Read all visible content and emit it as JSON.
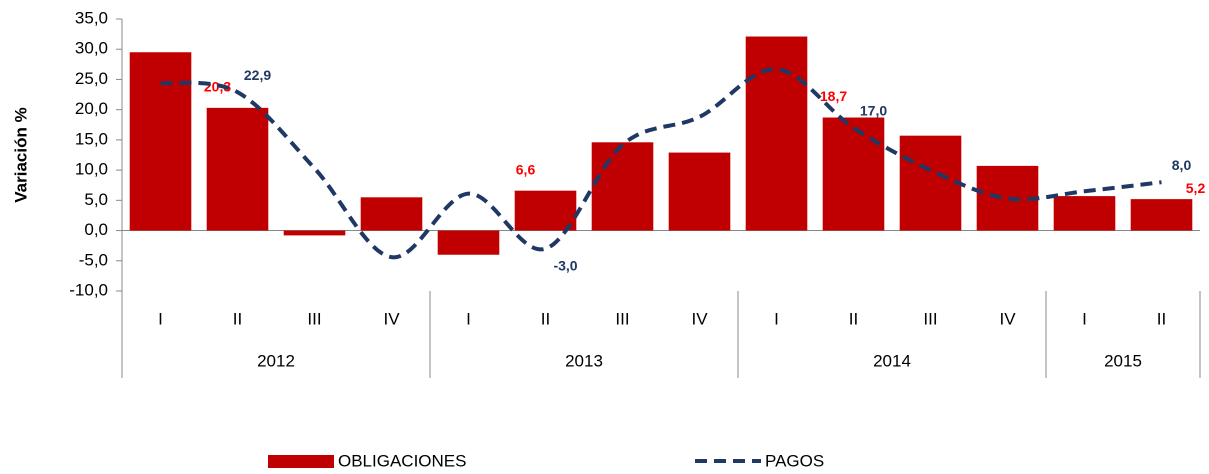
{
  "chart_data": {
    "type": "bar_line",
    "y_label": "Variación %",
    "categories": [
      "I",
      "II",
      "III",
      "IV",
      "I",
      "II",
      "III",
      "IV",
      "I",
      "II",
      "III",
      "IV",
      "I",
      "II"
    ],
    "groups": [
      {
        "name": "2012",
        "count": 4
      },
      {
        "name": "2013",
        "count": 4
      },
      {
        "name": "2014",
        "count": 4
      },
      {
        "name": "2015",
        "count": 2
      }
    ],
    "series": [
      {
        "name": "OBLIGACIONES",
        "type": "bar",
        "color": "#c00000",
        "label_color": "#ff0000",
        "values": [
          29.5,
          20.3,
          -0.8,
          5.5,
          -4.0,
          6.6,
          14.6,
          12.9,
          32.1,
          18.7,
          15.7,
          10.7,
          5.7,
          5.2
        ],
        "value_labels": [
          null,
          "20,3",
          null,
          null,
          null,
          "6,6",
          null,
          null,
          null,
          "18,7",
          null,
          null,
          null,
          "5,2"
        ]
      },
      {
        "name": "PAGOS",
        "type": "line",
        "dashed": true,
        "color": "#1f3864",
        "label_color": "#1f3864",
        "values": [
          24.4,
          22.9,
          10.3,
          -4.4,
          6.1,
          -3.0,
          14.2,
          18.8,
          26.7,
          17.0,
          10.0,
          5.3,
          6.5,
          8.0
        ],
        "value_labels": [
          null,
          "22,9",
          null,
          null,
          null,
          "-3,0",
          null,
          null,
          null,
          "17,0",
          null,
          null,
          null,
          "8,0"
        ]
      }
    ],
    "ylim": [
      -10,
      35
    ],
    "yticks": [
      {
        "value": -10,
        "label": "-10,0"
      },
      {
        "value": -5,
        "label": "-5,0"
      },
      {
        "value": 0,
        "label": "0,0"
      },
      {
        "value": 5,
        "label": "5,0"
      },
      {
        "value": 10,
        "label": "10,0"
      },
      {
        "value": 15,
        "label": "15,0"
      },
      {
        "value": 20,
        "label": "20,0"
      },
      {
        "value": 25,
        "label": "25,0"
      },
      {
        "value": 30,
        "label": "30,0"
      },
      {
        "value": 35,
        "label": "35,0"
      }
    ],
    "grid": false,
    "legend": "bottom"
  }
}
